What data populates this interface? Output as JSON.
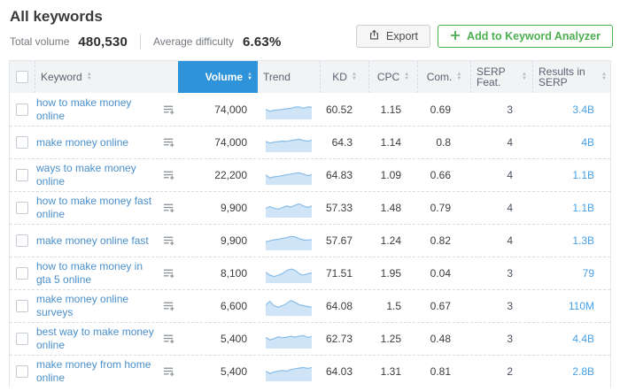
{
  "page": {
    "title": "All keywords"
  },
  "summary": {
    "total_volume_label": "Total volume",
    "total_volume": "480,530",
    "avg_difficulty_label": "Average difficulty",
    "avg_difficulty": "6.63%"
  },
  "actions": {
    "export_label": "Export",
    "export_icon": "export-upload-icon",
    "add_label": "Add to Keyword Analyzer",
    "add_plus": "+"
  },
  "colors": {
    "accent_blue": "#2e93d8",
    "link_blue": "#4a8fcb",
    "results_blue": "#47a0e8",
    "green": "#4caf50",
    "spark_fill": "#cfe5f7",
    "spark_stroke": "#8abde8"
  },
  "table": {
    "sorted_column": "Volume",
    "sort_direction": "descending",
    "columns": [
      {
        "label": "Keyword",
        "sortable": true
      },
      {
        "label": "Volume",
        "sortable": true,
        "active": true
      },
      {
        "label": "Trend",
        "sortable": false
      },
      {
        "label": "KD",
        "sortable": true
      },
      {
        "label": "CPC",
        "sortable": true
      },
      {
        "label": "Com.",
        "sortable": true
      },
      {
        "label": "SERP Feat.",
        "sortable": true
      },
      {
        "label": "Results in SERP",
        "sortable": true
      }
    ],
    "rows": [
      {
        "keyword": "how to make money online",
        "volume": "74,000",
        "kd": "60.52",
        "cpc": "1.15",
        "com": "0.69",
        "serp_features": "3",
        "results": "3.4B",
        "trend": [
          0.55,
          0.42,
          0.5,
          0.52,
          0.55,
          0.6,
          0.62,
          0.7,
          0.72,
          0.62,
          0.72,
          0.7
        ]
      },
      {
        "keyword": "make money online",
        "volume": "74,000",
        "kd": "64.3",
        "cpc": "1.14",
        "com": "0.8",
        "serp_features": "4",
        "results": "4B",
        "trend": [
          0.6,
          0.48,
          0.55,
          0.58,
          0.62,
          0.6,
          0.66,
          0.7,
          0.74,
          0.66,
          0.62,
          0.68
        ]
      },
      {
        "keyword": "ways to make money online",
        "volume": "22,200",
        "kd": "64.83",
        "cpc": "1.09",
        "com": "0.66",
        "serp_features": "4",
        "results": "1.1B",
        "trend": [
          0.55,
          0.35,
          0.42,
          0.45,
          0.5,
          0.55,
          0.6,
          0.66,
          0.68,
          0.6,
          0.5,
          0.55
        ]
      },
      {
        "keyword": "how to make money fast online",
        "volume": "9,900",
        "kd": "57.33",
        "cpc": "1.48",
        "com": "0.79",
        "serp_features": "4",
        "results": "1.1B",
        "trend": [
          0.5,
          0.62,
          0.5,
          0.44,
          0.56,
          0.66,
          0.58,
          0.7,
          0.8,
          0.66,
          0.56,
          0.66
        ]
      },
      {
        "keyword": "make money online fast",
        "volume": "9,900",
        "kd": "57.67",
        "cpc": "1.24",
        "com": "0.82",
        "serp_features": "4",
        "results": "1.3B",
        "trend": [
          0.45,
          0.52,
          0.58,
          0.62,
          0.68,
          0.74,
          0.8,
          0.78,
          0.66,
          0.58,
          0.55,
          0.6
        ]
      },
      {
        "keyword": "how to make money in gta 5 online",
        "volume": "8,100",
        "kd": "71.51",
        "cpc": "1.95",
        "com": "0.04",
        "serp_features": "3",
        "results": "79",
        "trend": [
          0.6,
          0.42,
          0.32,
          0.4,
          0.52,
          0.72,
          0.82,
          0.74,
          0.5,
          0.42,
          0.5,
          0.56
        ]
      },
      {
        "keyword": "make money online surveys",
        "volume": "6,600",
        "kd": "64.08",
        "cpc": "1.5",
        "com": "0.67",
        "serp_features": "3",
        "results": "110M",
        "trend": [
          0.6,
          0.85,
          0.55,
          0.45,
          0.55,
          0.7,
          0.9,
          0.78,
          0.62,
          0.56,
          0.5,
          0.46
        ]
      },
      {
        "keyword": "best way to make money online",
        "volume": "5,400",
        "kd": "62.73",
        "cpc": "1.25",
        "com": "0.48",
        "serp_features": "3",
        "results": "4.4B",
        "trend": [
          0.62,
          0.46,
          0.54,
          0.66,
          0.6,
          0.64,
          0.7,
          0.64,
          0.7,
          0.76,
          0.62,
          0.68
        ]
      },
      {
        "keyword": "make money from home online",
        "volume": "5,400",
        "kd": "64.03",
        "cpc": "1.31",
        "com": "0.81",
        "serp_features": "2",
        "results": "2.8B",
        "trend": [
          0.55,
          0.4,
          0.5,
          0.55,
          0.6,
          0.55,
          0.66,
          0.72,
          0.76,
          0.8,
          0.74,
          0.8
        ]
      }
    ]
  }
}
